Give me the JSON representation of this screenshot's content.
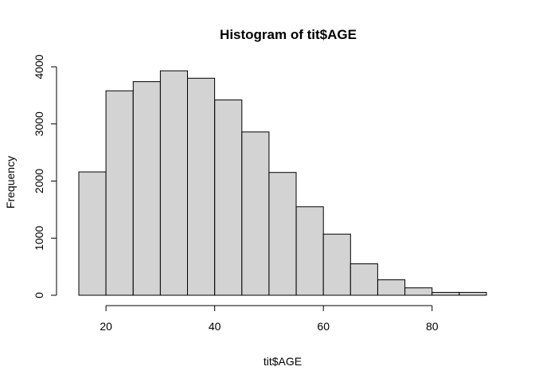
{
  "chart_data": {
    "type": "bar",
    "subtype": "histogram",
    "title": "Histogram of tit$AGE",
    "xlabel": "tit$AGE",
    "ylabel": "Frequency",
    "bin_edges": [
      15,
      20,
      25,
      30,
      35,
      40,
      45,
      50,
      55,
      60,
      65,
      70,
      75,
      80,
      85,
      90
    ],
    "values": [
      2160,
      3580,
      3740,
      3930,
      3800,
      3420,
      2860,
      2150,
      1550,
      1070,
      550,
      270,
      130,
      50,
      50
    ],
    "xlim": [
      15,
      90
    ],
    "ylim": [
      0,
      3930
    ],
    "x_ticks": [
      20,
      40,
      60,
      80
    ],
    "x_tick_labels": [
      "20",
      "40",
      "60",
      "80"
    ],
    "y_ticks": [
      0,
      1000,
      2000,
      3000,
      4000
    ],
    "y_tick_labels": [
      "0",
      "1000",
      "2000",
      "3000",
      "4000"
    ],
    "bar_color": "#d3d3d3",
    "edge_color": "#000000",
    "grid": false,
    "legend": "none"
  }
}
